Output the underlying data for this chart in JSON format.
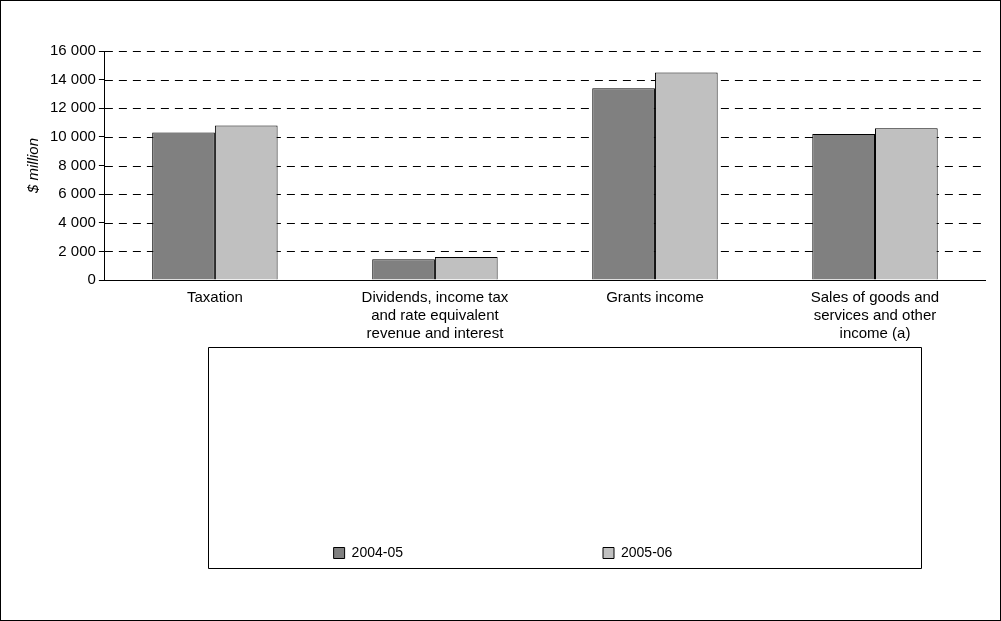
{
  "chart_data": {
    "type": "bar",
    "ylabel": "$ million",
    "categories": [
      "Taxation",
      "Dividends, income tax and rate equivalent revenue and interest",
      "Grants income",
      "Sales of goods and services and other income (a)"
    ],
    "series": [
      {
        "name": "2004-05",
        "color": "#808080",
        "values": [
          10300,
          1450,
          13400,
          10200
        ]
      },
      {
        "name": "2005-06",
        "color": "#c0c0c0",
        "values": [
          10800,
          1600,
          14500,
          10600
        ]
      }
    ],
    "ylim": [
      0,
      16000
    ],
    "yticks": [
      0,
      {
        "value": 2000,
        "label": "2 000"
      },
      {
        "value": 4000,
        "label": "4 000"
      },
      {
        "value": 6000,
        "label": "6 000"
      },
      {
        "value": 8000,
        "label": "8 000"
      },
      {
        "value": 10000,
        "label": "10 000"
      },
      {
        "value": 12000,
        "label": "12 000"
      },
      {
        "value": 14000,
        "label": "14 000"
      },
      {
        "value": 16000,
        "label": "16 000"
      }
    ],
    "grid": "y",
    "legend": "bottom"
  }
}
